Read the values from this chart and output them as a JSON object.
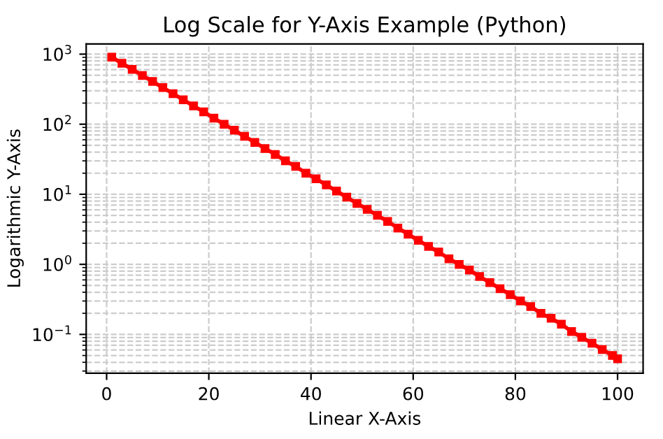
{
  "chart_data": {
    "type": "line",
    "title": "Log Scale for Y-Axis Example (Python)",
    "xlabel": "Linear X-Axis",
    "ylabel": "Logarithmic Y-Axis",
    "log": "y",
    "grid": true,
    "marker": "square",
    "line_style": "solid",
    "xlim": [
      -4,
      105
    ],
    "xticks": [
      0,
      20,
      40,
      60,
      80,
      100
    ],
    "ylim": [
      0.028,
      1400
    ],
    "yticks": [
      {
        "value": 0.1,
        "label": "10$^{−1}$"
      },
      {
        "value": 1,
        "label": "10$^{0}$"
      },
      {
        "value": 10,
        "label": "10$^{1}$"
      },
      {
        "value": 100,
        "label": "10$^{2}$"
      },
      {
        "value": 1000,
        "label": "10$^{3}$"
      }
    ],
    "x": [
      1,
      3,
      5,
      7,
      9,
      11,
      13,
      15,
      17,
      19,
      21,
      23,
      25,
      27,
      29,
      31,
      33,
      35,
      37,
      39,
      41,
      43,
      45,
      47,
      49,
      51,
      53,
      55,
      57,
      59,
      61,
      63,
      65,
      67,
      69,
      71,
      73,
      75,
      77,
      79,
      81,
      83,
      85,
      87,
      89,
      91,
      93,
      95,
      97,
      99,
      100
    ],
    "series": [
      {
        "color": "#ff0000",
        "values": [
          905,
          741,
          607,
          497,
          407,
          333,
          273,
          223,
          183,
          150,
          122,
          100,
          82,
          67,
          55,
          45,
          37,
          30,
          25,
          20,
          16.6,
          13.6,
          11.1,
          9.1,
          7.4,
          6.1,
          5.0,
          4.1,
          3.3,
          2.7,
          2.2,
          1.8,
          1.5,
          1.2,
          1.0,
          0.83,
          0.67,
          0.55,
          0.45,
          0.37,
          0.3,
          0.25,
          0.2,
          0.17,
          0.14,
          0.11,
          0.091,
          0.075,
          0.061,
          0.05,
          0.045
        ]
      }
    ]
  }
}
